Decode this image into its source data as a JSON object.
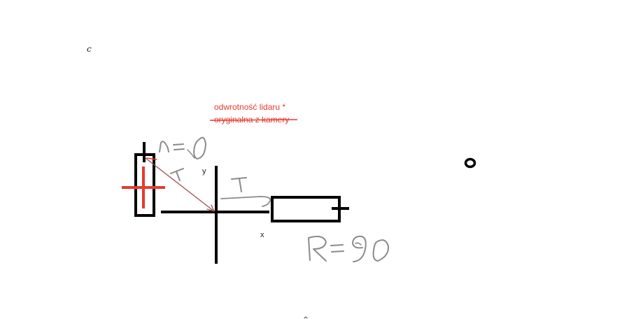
{
  "labels": {
    "corner_letter": "c",
    "axis_y": "y",
    "axis_x": "x",
    "note_line1": "odwrotność lidaru *",
    "note_line2": "oryginalna z kamery"
  },
  "colors": {
    "ink": "#000000",
    "red": "#e63b2e",
    "gray": "#8a8a8a"
  }
}
